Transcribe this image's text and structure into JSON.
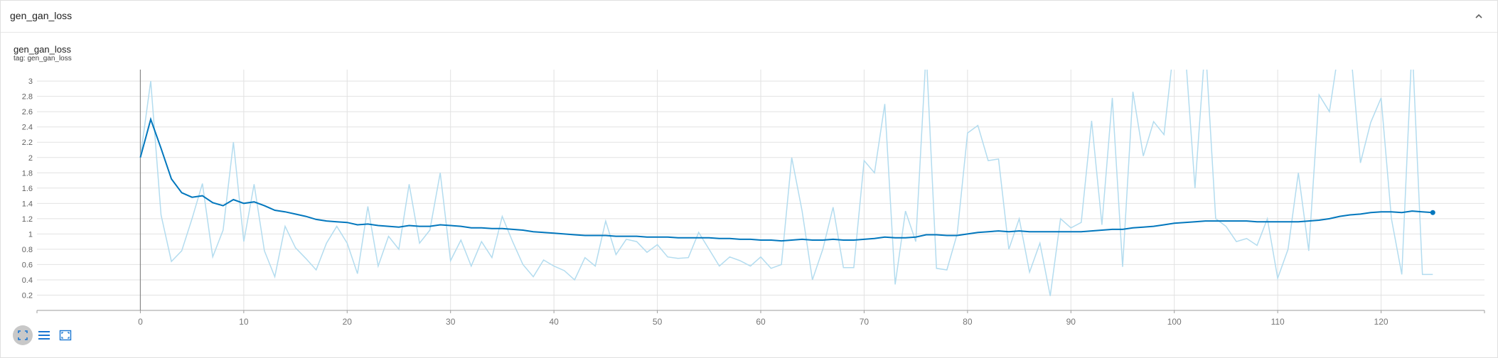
{
  "header": {
    "title": "gen_gan_loss"
  },
  "chart": {
    "title": "gen_gan_loss",
    "tag": "tag: gen_gan_loss"
  },
  "colors": {
    "smoothed": "#0277bd",
    "raw": "#b3dcef",
    "grid": "#e2e2e2",
    "axis": "#9e9e9e"
  },
  "toolbar": {
    "buttons": [
      {
        "name": "fit-domain-button",
        "icon": "fit-icon"
      },
      {
        "name": "log-scale-button",
        "icon": "lines-icon"
      },
      {
        "name": "expand-button",
        "icon": "expand-icon"
      }
    ]
  },
  "chart_data": {
    "type": "line",
    "title": "gen_gan_loss",
    "xlabel": "",
    "ylabel": "",
    "xlim": [
      -10,
      130
    ],
    "ylim": [
      0,
      3.15
    ],
    "xticks": [
      0,
      10,
      20,
      30,
      40,
      50,
      60,
      70,
      80,
      90,
      100,
      110,
      120
    ],
    "yticks": [
      0.2,
      0.4,
      0.6,
      0.8,
      1,
      1.2,
      1.4,
      1.6,
      1.8,
      2,
      2.2,
      2.4,
      2.6,
      2.8,
      3
    ],
    "yticklabels": [
      "0.2",
      "0.4",
      "0.6",
      "0.8",
      "1",
      "1.2",
      "1.4",
      "1.6",
      "1.8",
      "2",
      "2.2",
      "2.4",
      "2.6",
      "2.8",
      "3"
    ],
    "grid": true,
    "series": [
      {
        "name": "raw",
        "values": [
          2.0,
          3.0,
          1.25,
          0.64,
          0.78,
          1.2,
          1.66,
          0.7,
          1.05,
          2.2,
          0.9,
          1.65,
          0.78,
          0.44,
          1.1,
          0.82,
          0.68,
          0.53,
          0.88,
          1.1,
          0.88,
          0.48,
          1.36,
          0.58,
          0.97,
          0.8,
          1.65,
          0.88,
          1.05,
          1.8,
          0.65,
          0.92,
          0.58,
          0.9,
          0.69,
          1.23,
          0.9,
          0.6,
          0.44,
          0.66,
          0.58,
          0.52,
          0.4,
          0.69,
          0.58,
          1.17,
          0.73,
          0.93,
          0.9,
          0.76,
          0.86,
          0.7,
          0.68,
          0.69,
          1.02,
          0.8,
          0.58,
          0.7,
          0.65,
          0.58,
          0.7,
          0.55,
          0.6,
          2.0,
          1.3,
          0.4,
          0.8,
          1.35,
          0.56,
          0.56,
          1.96,
          1.8,
          2.7,
          0.34,
          1.3,
          0.9,
          3.4,
          0.55,
          0.53,
          1.0,
          2.32,
          2.42,
          1.96,
          1.98,
          0.8,
          1.2,
          0.5,
          0.88,
          0.19,
          1.2,
          1.08,
          1.15,
          2.48,
          1.12,
          2.78,
          0.57,
          2.86,
          2.02,
          2.47,
          2.3,
          3.5,
          3.5,
          1.6,
          3.5,
          1.2,
          1.1,
          0.9,
          0.94,
          0.85,
          1.2,
          0.42,
          0.8,
          1.8,
          0.78,
          2.82,
          2.6,
          3.5,
          3.5,
          1.93,
          2.46,
          2.78,
          1.2,
          0.47,
          3.5,
          0.47,
          0.47
        ],
        "x_end": 125
      },
      {
        "name": "smoothed",
        "values": [
          2.0,
          2.5,
          2.12,
          1.72,
          1.54,
          1.48,
          1.5,
          1.41,
          1.37,
          1.45,
          1.4,
          1.42,
          1.37,
          1.31,
          1.29,
          1.26,
          1.23,
          1.19,
          1.17,
          1.16,
          1.15,
          1.12,
          1.13,
          1.11,
          1.1,
          1.09,
          1.11,
          1.1,
          1.1,
          1.12,
          1.11,
          1.1,
          1.08,
          1.08,
          1.07,
          1.07,
          1.06,
          1.05,
          1.03,
          1.02,
          1.01,
          1.0,
          0.99,
          0.98,
          0.98,
          0.98,
          0.97,
          0.97,
          0.97,
          0.96,
          0.96,
          0.96,
          0.95,
          0.95,
          0.95,
          0.95,
          0.94,
          0.94,
          0.93,
          0.93,
          0.92,
          0.92,
          0.91,
          0.92,
          0.93,
          0.92,
          0.92,
          0.93,
          0.92,
          0.92,
          0.93,
          0.94,
          0.96,
          0.95,
          0.95,
          0.96,
          0.99,
          0.99,
          0.98,
          0.98,
          1.0,
          1.02,
          1.03,
          1.04,
          1.03,
          1.04,
          1.03,
          1.03,
          1.03,
          1.03,
          1.03,
          1.03,
          1.04,
          1.05,
          1.06,
          1.06,
          1.08,
          1.09,
          1.1,
          1.12,
          1.14,
          1.15,
          1.16,
          1.17,
          1.17,
          1.17,
          1.17,
          1.17,
          1.16,
          1.16,
          1.16,
          1.16,
          1.16,
          1.17,
          1.18,
          1.2,
          1.23,
          1.25,
          1.26,
          1.28,
          1.29,
          1.29,
          1.28,
          1.3,
          1.29,
          1.28
        ]
      }
    ]
  }
}
